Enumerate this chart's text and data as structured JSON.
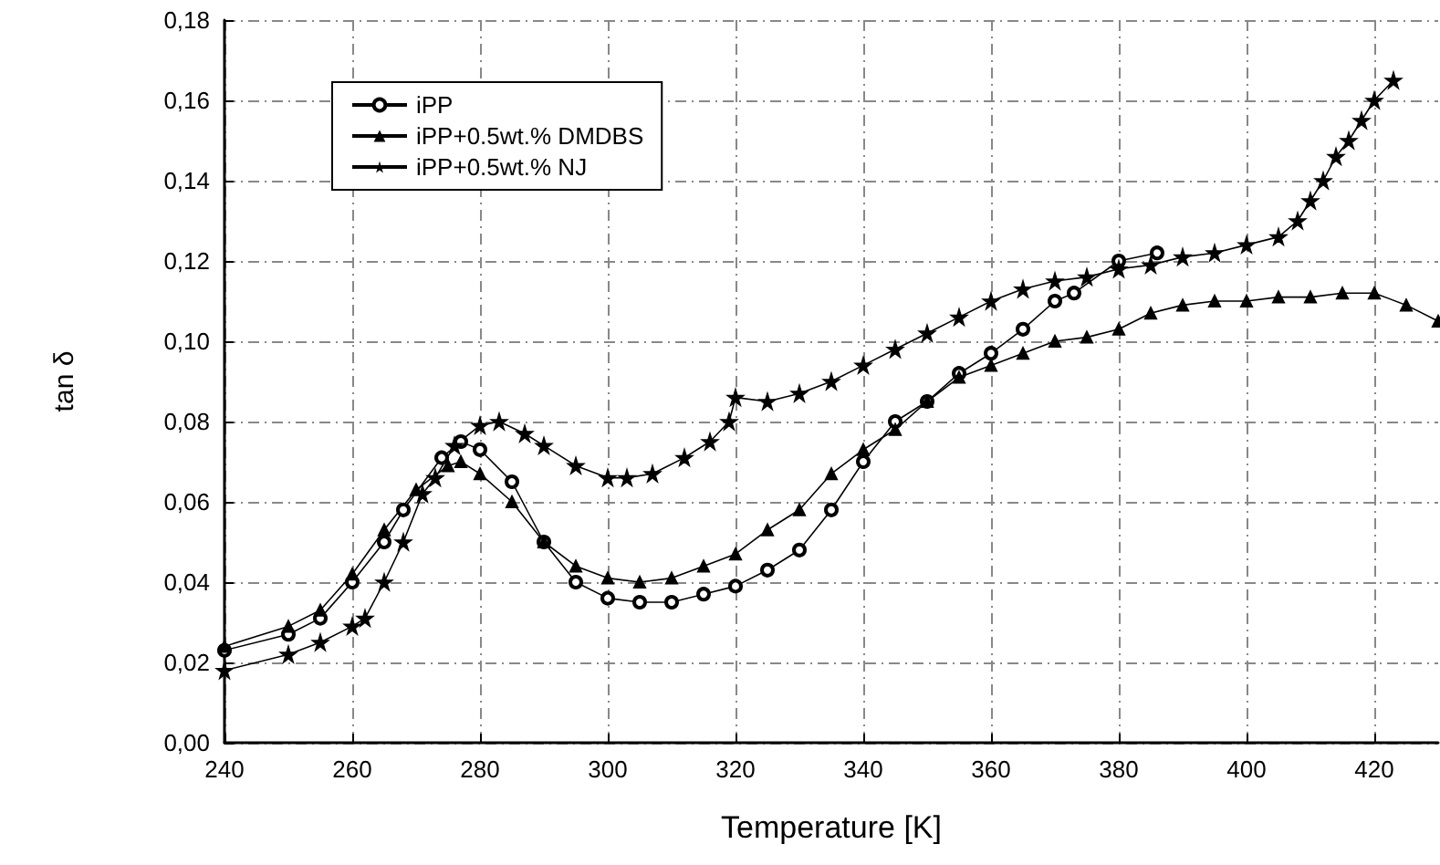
{
  "chart_data": {
    "type": "line",
    "xlabel": "Temperature [K]",
    "ylabel": "tan δ",
    "xlim": [
      240,
      430
    ],
    "xticks": [
      240,
      260,
      280,
      300,
      320,
      340,
      360,
      380,
      400,
      420
    ],
    "ylim": [
      0,
      0.18
    ],
    "yticks": [
      {
        "value": 0,
        "label": "0,00"
      },
      {
        "value": 0.02,
        "label": "0,02"
      },
      {
        "value": 0.04,
        "label": "0,04"
      },
      {
        "value": 0.06,
        "label": "0,06"
      },
      {
        "value": 0.08,
        "label": "0,08"
      },
      {
        "value": 0.1,
        "label": "0,10"
      },
      {
        "value": 0.12,
        "label": "0,12"
      },
      {
        "value": 0.14,
        "label": "0,14"
      },
      {
        "value": 0.16,
        "label": "0,16"
      },
      {
        "value": 0.18,
        "label": "0,18"
      }
    ],
    "grid": true,
    "legend": "top left",
    "line_style": "solid",
    "series": [
      {
        "name": "iPP",
        "color": "#000000",
        "marker": "circle",
        "x": [
          240,
          250,
          255,
          260,
          265,
          268,
          274,
          277,
          280,
          285,
          290,
          295,
          300,
          305,
          310,
          315,
          320,
          325,
          330,
          335,
          340,
          345,
          350,
          355,
          360,
          365,
          370,
          373,
          380,
          386
        ],
        "values": [
          0.023,
          0.027,
          0.031,
          0.04,
          0.05,
          0.058,
          0.071,
          0.075,
          0.073,
          0.065,
          0.05,
          0.04,
          0.036,
          0.035,
          0.035,
          0.037,
          0.039,
          0.043,
          0.048,
          0.058,
          0.07,
          0.08,
          0.085,
          0.092,
          0.097,
          0.103,
          0.11,
          0.112,
          0.12,
          0.122
        ]
      },
      {
        "name": "iPP+0.5wt.% DMDBS",
        "color": "#000000",
        "marker": "triangle",
        "x": [
          240,
          250,
          255,
          260,
          265,
          270,
          275,
          277,
          280,
          285,
          290,
          295,
          300,
          305,
          310,
          315,
          320,
          325,
          330,
          335,
          340,
          345,
          350,
          355,
          360,
          365,
          370,
          375,
          380,
          385,
          390,
          395,
          400,
          405,
          410,
          415,
          420,
          425,
          430
        ],
        "values": [
          0.024,
          0.029,
          0.033,
          0.042,
          0.053,
          0.063,
          0.069,
          0.07,
          0.067,
          0.06,
          0.05,
          0.044,
          0.041,
          0.04,
          0.041,
          0.044,
          0.047,
          0.053,
          0.058,
          0.067,
          0.073,
          0.078,
          0.085,
          0.091,
          0.094,
          0.097,
          0.1,
          0.101,
          0.103,
          0.107,
          0.109,
          0.11,
          0.11,
          0.111,
          0.111,
          0.112,
          0.112,
          0.109,
          0.105
        ]
      },
      {
        "name": "iPP+0.5wt.% NJ",
        "color": "#000000",
        "marker": "star",
        "x": [
          240,
          250,
          255,
          260,
          262,
          265,
          268,
          271,
          273,
          276,
          280,
          283,
          287,
          290,
          295,
          300,
          303,
          307,
          312,
          316,
          319,
          320,
          325,
          330,
          335,
          340,
          345,
          350,
          355,
          360,
          365,
          370,
          375,
          380,
          385,
          390,
          395,
          400,
          405,
          408,
          410,
          412,
          414,
          416,
          418,
          420,
          423
        ],
        "values": [
          0.018,
          0.022,
          0.025,
          0.029,
          0.031,
          0.04,
          0.05,
          0.062,
          0.066,
          0.074,
          0.079,
          0.08,
          0.077,
          0.074,
          0.069,
          0.066,
          0.066,
          0.067,
          0.071,
          0.075,
          0.08,
          0.086,
          0.085,
          0.087,
          0.09,
          0.094,
          0.098,
          0.102,
          0.106,
          0.11,
          0.113,
          0.115,
          0.116,
          0.118,
          0.119,
          0.121,
          0.122,
          0.124,
          0.126,
          0.13,
          0.135,
          0.14,
          0.146,
          0.15,
          0.155,
          0.16,
          0.165
        ]
      }
    ]
  }
}
